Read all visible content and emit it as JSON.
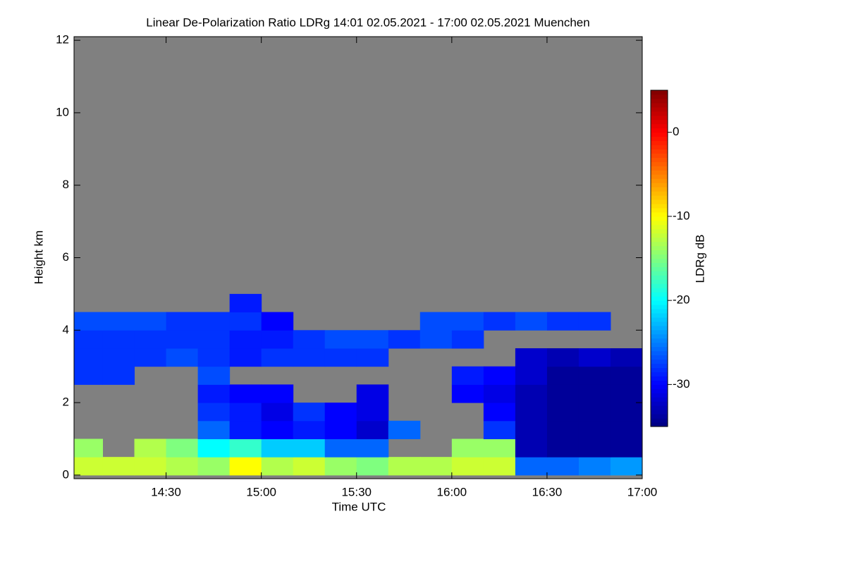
{
  "chart_data": {
    "type": "heatmap",
    "title": "Linear De-Polarization Ratio LDRg   14:01 02.05.2021 - 17:00 02.05.2021 Muenchen",
    "x_label": "Time UTC",
    "y_label": "Height km",
    "colorbar_label": "LDRg dB",
    "xlim": [
      841,
      1020
    ],
    "xticks": [
      {
        "value": 870,
        "label": "14:30"
      },
      {
        "value": 900,
        "label": "15:00"
      },
      {
        "value": 930,
        "label": "15:30"
      },
      {
        "value": 960,
        "label": "16:00"
      },
      {
        "value": 990,
        "label": "16:30"
      },
      {
        "value": 1020,
        "label": "17:00"
      }
    ],
    "ylim": [
      -0.1,
      12.1
    ],
    "yticks": [
      0,
      2,
      4,
      6,
      8,
      10,
      12
    ],
    "clim": [
      -35,
      5
    ],
    "cticks": [
      0,
      -10,
      -20,
      -30
    ],
    "colormap": [
      "#00007f",
      "#0000ff",
      "#007fff",
      "#00ffff",
      "#7fff7f",
      "#ffff00",
      "#ff7f00",
      "#ff0000",
      "#7f0000"
    ],
    "missing_color": "#808080",
    "xbins": [
      841,
      850,
      860,
      870,
      880,
      890,
      900,
      910,
      920,
      930,
      940,
      950,
      960,
      970,
      980,
      990,
      1000,
      1010,
      1020
    ],
    "ybins": [
      0,
      0.5,
      1,
      1.5,
      2,
      2.5,
      3,
      3.5,
      4,
      4.5,
      5
    ],
    "values": [
      [
        -12,
        -12,
        -12,
        -13,
        -14,
        -10,
        -13,
        -12,
        -14,
        -15,
        -13,
        -13,
        -12,
        -12,
        -26,
        -26,
        -25,
        -24
      ],
      [
        -14,
        null,
        -13,
        -15,
        -20,
        -18,
        -22,
        -22,
        -26,
        -26,
        null,
        null,
        -14,
        -14,
        -33,
        -34,
        -34,
        -34
      ],
      [
        null,
        null,
        null,
        null,
        -26,
        -29,
        -30,
        -29,
        -30,
        -32,
        -26,
        null,
        null,
        -28,
        -33,
        -34,
        -34,
        -34
      ],
      [
        null,
        null,
        null,
        null,
        -28,
        -29,
        -31,
        -28,
        -30,
        -31,
        null,
        null,
        null,
        -30,
        -33,
        -34,
        -34,
        -34
      ],
      [
        null,
        null,
        null,
        null,
        -29,
        -30,
        -30,
        null,
        null,
        -31,
        null,
        null,
        -30,
        -31,
        -33,
        -34,
        -34,
        -34
      ],
      [
        -28,
        -28,
        null,
        null,
        -27,
        null,
        null,
        null,
        null,
        null,
        null,
        null,
        -29,
        -30,
        -32,
        -34,
        -34,
        -34
      ],
      [
        -28,
        -28,
        -28,
        -27,
        -28,
        -29,
        -28,
        -28,
        -28,
        -28,
        null,
        null,
        null,
        null,
        -32,
        -33,
        -32,
        -33
      ],
      [
        -28,
        -28,
        -28,
        -28,
        -28,
        -29,
        -29,
        -28,
        -27,
        -27,
        -28,
        -27,
        -28,
        null,
        null,
        null,
        null,
        null
      ],
      [
        -27,
        -27,
        -27,
        -28,
        -28,
        -28,
        -30,
        null,
        null,
        null,
        null,
        -27,
        -27,
        -28,
        -27,
        -28,
        -28,
        null
      ],
      [
        null,
        null,
        null,
        null,
        null,
        -29,
        null,
        null,
        null,
        null,
        null,
        null,
        null,
        null,
        null,
        null,
        null,
        null
      ]
    ]
  }
}
